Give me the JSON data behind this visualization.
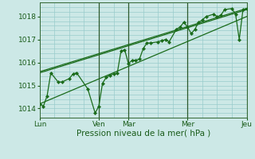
{
  "background_color": "#cce8e6",
  "grid_color": "#99cccc",
  "line_color": "#1a6b1a",
  "marker_color": "#1a6b1a",
  "xlabel": "Pression niveau de la mer( hPa )",
  "xlabel_fontsize": 7.5,
  "tick_fontsize": 6.5,
  "ylim": [
    1013.6,
    1018.6
  ],
  "yticks": [
    1014,
    1015,
    1016,
    1017,
    1018
  ],
  "xlim": [
    0,
    336
  ],
  "day_ticks_x": [
    0,
    96,
    144,
    240,
    336
  ],
  "day_labels": [
    "Lun",
    "Ven",
    "Mar",
    "Mer",
    "Jeu"
  ],
  "dark_vlines": [
    96,
    144,
    240,
    336
  ],
  "trend_upper1": {
    "x": [
      0,
      336
    ],
    "y": [
      1015.6,
      1018.35
    ]
  },
  "trend_upper2": {
    "x": [
      0,
      336
    ],
    "y": [
      1015.55,
      1018.3
    ]
  },
  "trend_lower": {
    "x": [
      0,
      336
    ],
    "y": [
      1014.2,
      1018.0
    ]
  },
  "main_x": [
    0,
    6,
    12,
    18,
    30,
    36,
    48,
    54,
    60,
    78,
    90,
    96,
    102,
    108,
    114,
    120,
    126,
    132,
    138,
    144,
    150,
    156,
    162,
    168,
    174,
    180,
    192,
    198,
    204,
    210,
    222,
    228,
    234,
    240,
    246,
    252,
    258,
    264,
    270,
    282,
    288,
    294,
    300,
    312,
    318,
    324,
    330,
    336
  ],
  "main_y": [
    1014.2,
    1014.1,
    1014.55,
    1015.55,
    1015.15,
    1015.15,
    1015.3,
    1015.5,
    1015.55,
    1014.85,
    1013.8,
    1014.1,
    1015.1,
    1015.35,
    1015.45,
    1015.5,
    1015.55,
    1016.5,
    1016.55,
    1015.95,
    1016.1,
    1016.1,
    1016.15,
    1016.6,
    1016.85,
    1016.85,
    1016.9,
    1016.95,
    1017.0,
    1016.9,
    1017.45,
    1017.55,
    1017.75,
    1017.55,
    1017.25,
    1017.45,
    1017.75,
    1017.85,
    1018.0,
    1018.1,
    1018.0,
    1018.05,
    1018.3,
    1018.35,
    1018.1,
    1017.0,
    1018.3,
    1018.35
  ]
}
